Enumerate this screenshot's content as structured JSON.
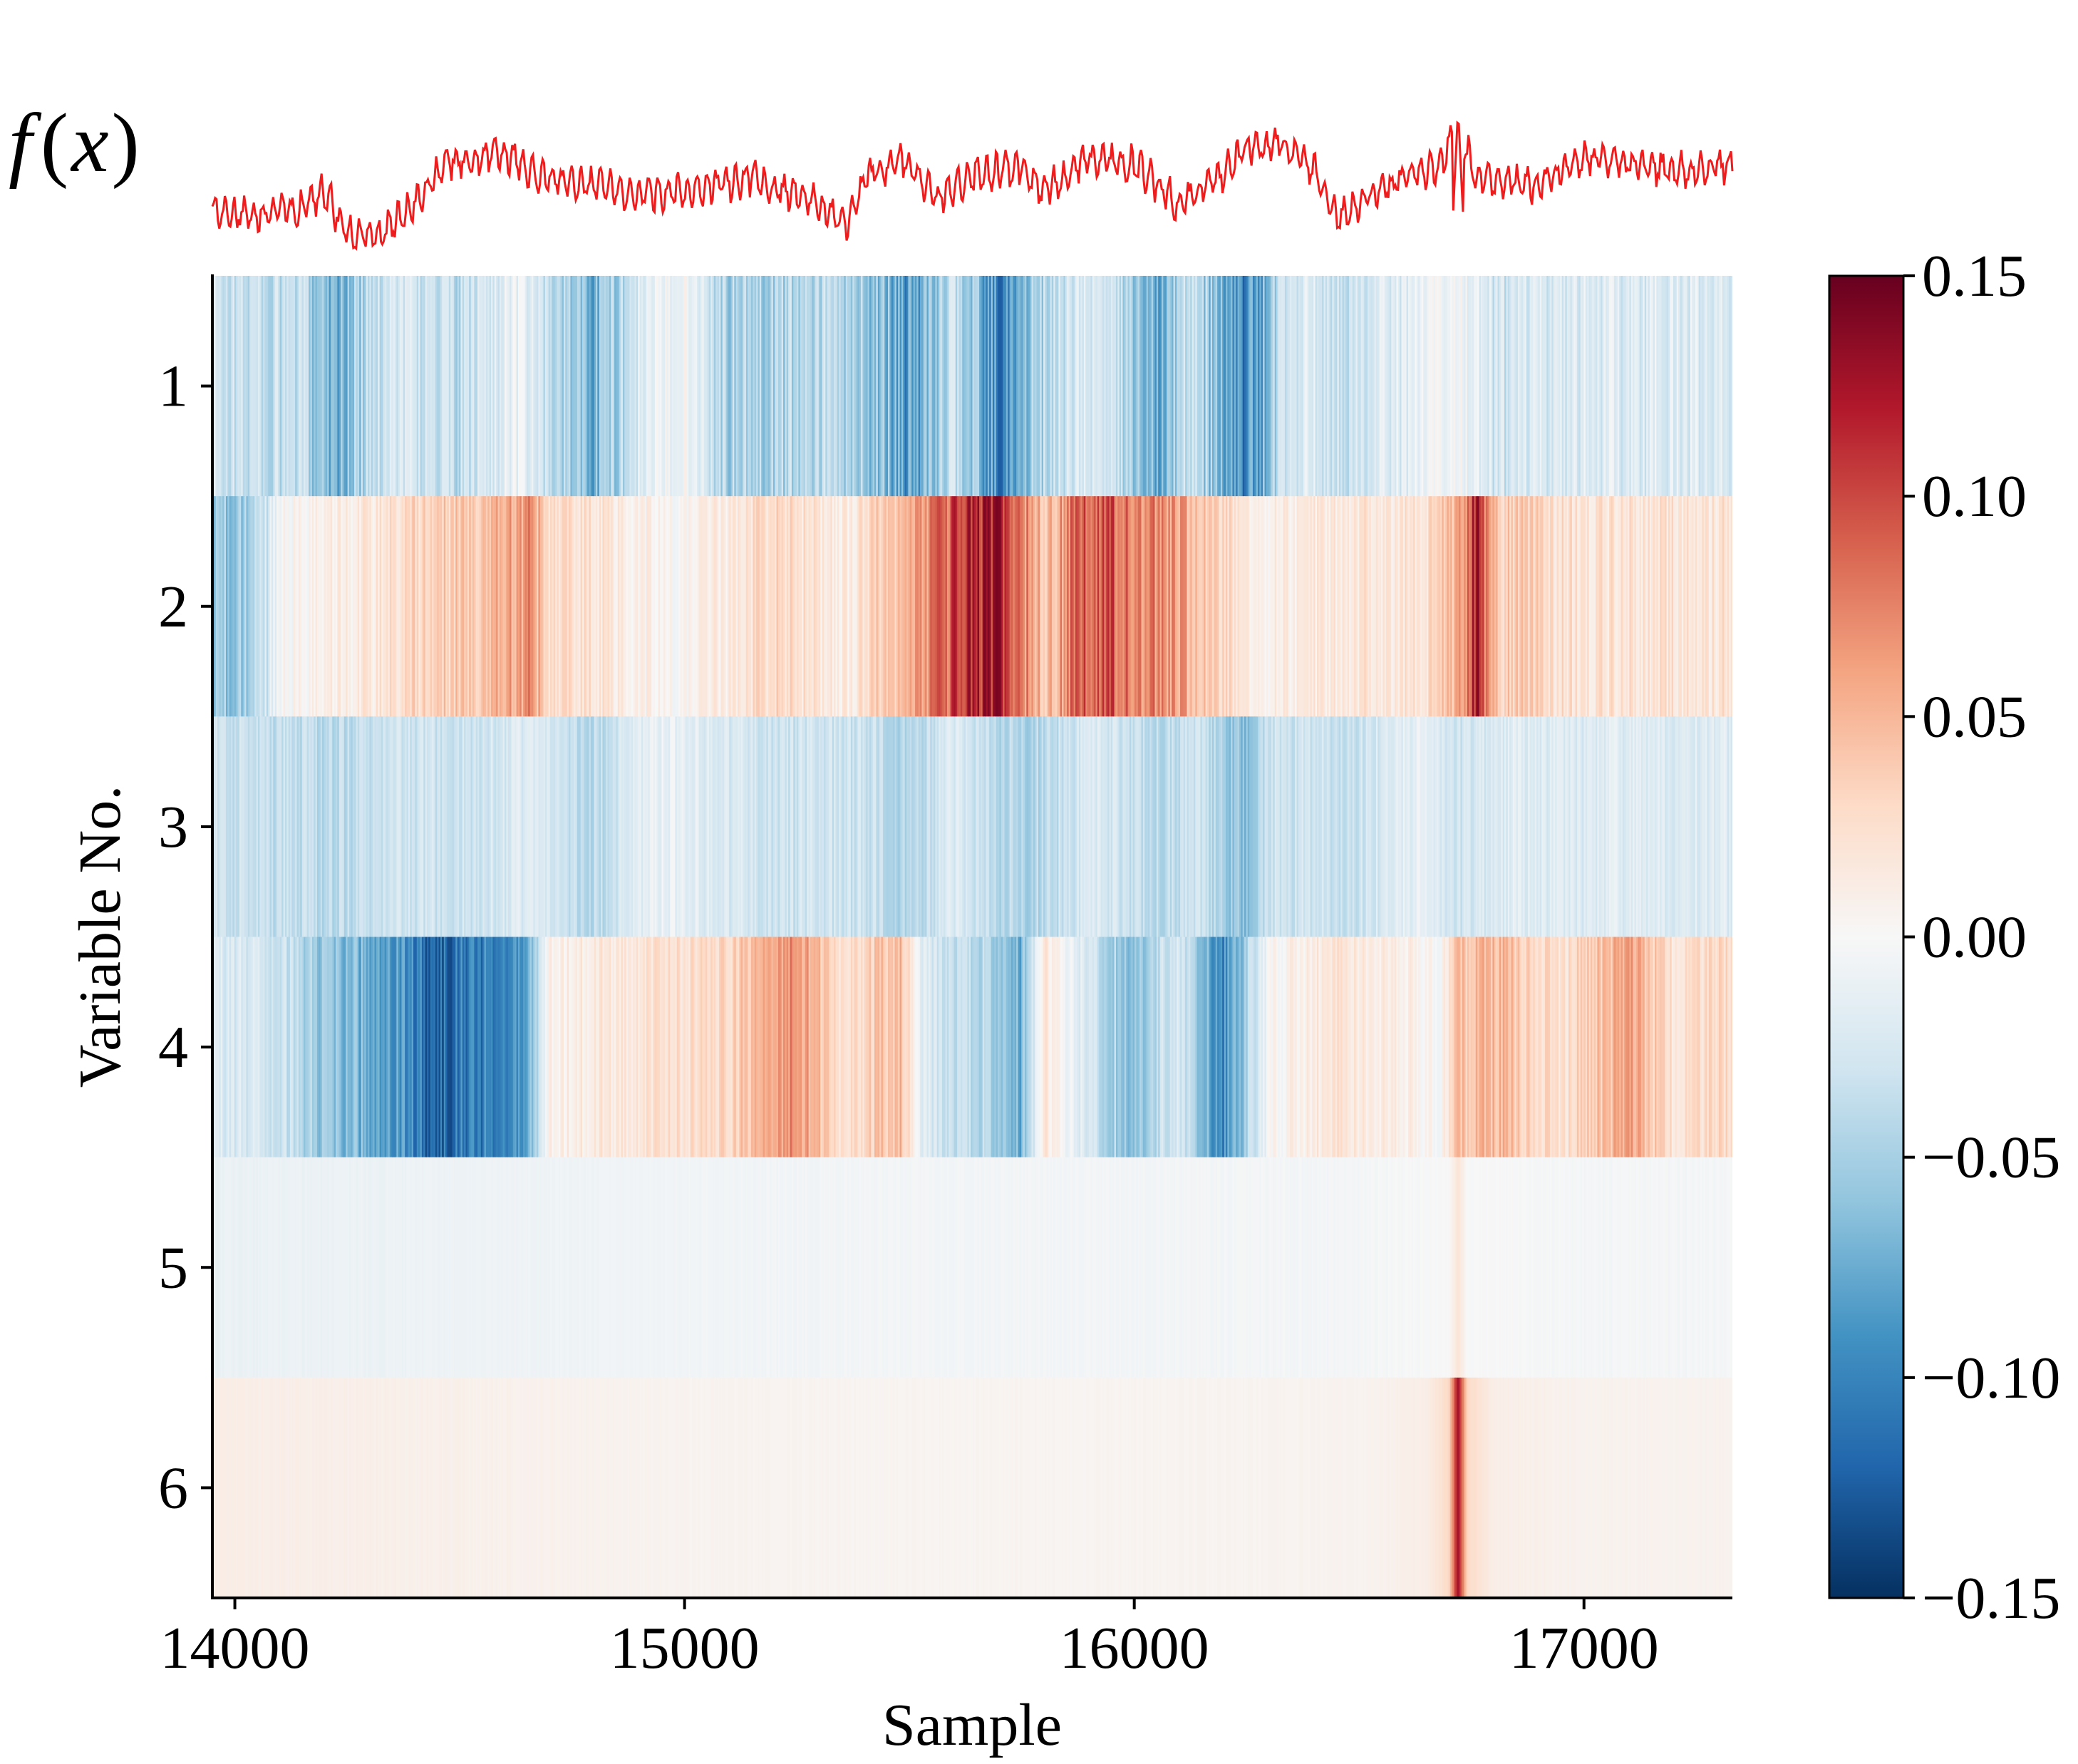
{
  "chart_data": {
    "type": "heatmap",
    "title": "",
    "top_panel": {
      "label": "f (x)",
      "label_parts": [
        "f",
        "(",
        "x",
        ")"
      ],
      "type": "line",
      "color": "#ee1c1c",
      "x_range": [
        13950,
        17330
      ],
      "anchors": [
        [
          13950,
          0.35
        ],
        [
          14050,
          0.32
        ],
        [
          14150,
          0.38
        ],
        [
          14200,
          0.5
        ],
        [
          14250,
          0.18
        ],
        [
          14320,
          0.15
        ],
        [
          14400,
          0.42
        ],
        [
          14470,
          0.72
        ],
        [
          14600,
          0.78
        ],
        [
          14680,
          0.6
        ],
        [
          14800,
          0.55
        ],
        [
          14900,
          0.48
        ],
        [
          15000,
          0.5
        ],
        [
          15150,
          0.6
        ],
        [
          15300,
          0.4
        ],
        [
          15360,
          0.25
        ],
        [
          15400,
          0.6
        ],
        [
          15480,
          0.75
        ],
        [
          15560,
          0.45
        ],
        [
          15650,
          0.62
        ],
        [
          15750,
          0.68
        ],
        [
          15800,
          0.5
        ],
        [
          15900,
          0.75
        ],
        [
          16000,
          0.7
        ],
        [
          16100,
          0.4
        ],
        [
          16170,
          0.55
        ],
        [
          16250,
          0.82
        ],
        [
          16330,
          0.85
        ],
        [
          16400,
          0.65
        ],
        [
          16450,
          0.3
        ],
        [
          16520,
          0.45
        ],
        [
          16600,
          0.6
        ],
        [
          16680,
          0.7
        ],
        [
          16720,
          1.0
        ],
        [
          16760,
          0.6
        ],
        [
          16900,
          0.55
        ],
        [
          17000,
          0.75
        ],
        [
          17100,
          0.72
        ],
        [
          17200,
          0.65
        ],
        [
          17330,
          0.7
        ]
      ],
      "spike": {
        "x": 16720,
        "value": 1.0
      }
    },
    "heatmap": {
      "x_label": "Sample",
      "y_label": "Variable No.",
      "x_range": [
        13950,
        17330
      ],
      "x_ticks": [
        14000,
        15000,
        16000,
        17000
      ],
      "x_tick_labels": [
        "14000",
        "15000",
        "16000",
        "17000"
      ],
      "y_categories": [
        "1",
        "2",
        "3",
        "4",
        "5",
        "6"
      ],
      "colormap": "RdBu_r",
      "rows": [
        {
          "variable": "1",
          "amplitude": 0.07,
          "profile": [
            [
              13950,
              -0.03
            ],
            [
              14150,
              -0.04
            ],
            [
              14230,
              -0.07
            ],
            [
              14350,
              -0.02
            ],
            [
              14500,
              -0.04
            ],
            [
              14620,
              -0.01
            ],
            [
              14800,
              -0.07
            ],
            [
              14900,
              -0.02
            ],
            [
              15000,
              0.0
            ],
            [
              15100,
              -0.05
            ],
            [
              15300,
              -0.04
            ],
            [
              15450,
              -0.06
            ],
            [
              15500,
              -0.09
            ],
            [
              15600,
              -0.03
            ],
            [
              15700,
              -0.1
            ],
            [
              15800,
              -0.04
            ],
            [
              15900,
              -0.02
            ],
            [
              16050,
              -0.07
            ],
            [
              16120,
              -0.03
            ],
            [
              16250,
              -0.1
            ],
            [
              16350,
              -0.02
            ],
            [
              16500,
              -0.03
            ],
            [
              16650,
              -0.01
            ],
            [
              16720,
              0.0
            ],
            [
              16800,
              -0.03
            ],
            [
              17000,
              -0.02
            ],
            [
              17330,
              -0.02
            ]
          ]
        },
        {
          "variable": "2",
          "amplitude": 0.06,
          "profile": [
            [
              13950,
              -0.06
            ],
            [
              14050,
              -0.05
            ],
            [
              14100,
              0.0
            ],
            [
              14250,
              0.01
            ],
            [
              14400,
              0.03
            ],
            [
              14600,
              0.05
            ],
            [
              14650,
              0.07
            ],
            [
              14700,
              0.03
            ],
            [
              14900,
              0.01
            ],
            [
              15000,
              0.0
            ],
            [
              15200,
              0.03
            ],
            [
              15350,
              0.01
            ],
            [
              15500,
              0.05
            ],
            [
              15600,
              0.1
            ],
            [
              15700,
              0.12
            ],
            [
              15800,
              0.04
            ],
            [
              15900,
              0.1
            ],
            [
              16000,
              0.08
            ],
            [
              16100,
              0.06
            ],
            [
              16200,
              0.03
            ],
            [
              16300,
              0.01
            ],
            [
              16500,
              0.02
            ],
            [
              16650,
              0.02
            ],
            [
              16720,
              0.05
            ],
            [
              16760,
              0.12
            ],
            [
              16800,
              0.04
            ],
            [
              17000,
              0.02
            ],
            [
              17330,
              0.02
            ]
          ]
        },
        {
          "variable": "3",
          "amplitude": 0.045,
          "profile": [
            [
              13950,
              -0.03
            ],
            [
              14200,
              -0.04
            ],
            [
              14350,
              -0.03
            ],
            [
              14500,
              -0.03
            ],
            [
              14650,
              -0.02
            ],
            [
              14800,
              -0.04
            ],
            [
              14950,
              -0.01
            ],
            [
              15050,
              -0.02
            ],
            [
              15200,
              -0.03
            ],
            [
              15400,
              -0.03
            ],
            [
              15500,
              -0.05
            ],
            [
              15600,
              -0.02
            ],
            [
              15750,
              -0.05
            ],
            [
              15900,
              -0.02
            ],
            [
              16050,
              -0.04
            ],
            [
              16150,
              -0.03
            ],
            [
              16250,
              -0.07
            ],
            [
              16300,
              -0.03
            ],
            [
              16500,
              -0.03
            ],
            [
              16650,
              -0.01
            ],
            [
              16720,
              -0.03
            ],
            [
              16800,
              -0.02
            ],
            [
              17000,
              -0.02
            ],
            [
              17330,
              -0.02
            ]
          ]
        },
        {
          "variable": "4",
          "amplitude": 0.05,
          "profile": [
            [
              13950,
              -0.02
            ],
            [
              14100,
              -0.03
            ],
            [
              14200,
              -0.06
            ],
            [
              14350,
              -0.08
            ],
            [
              14450,
              -0.12
            ],
            [
              14550,
              -0.1
            ],
            [
              14650,
              -0.08
            ],
            [
              14700,
              0.01
            ],
            [
              14900,
              0.02
            ],
            [
              15100,
              0.03
            ],
            [
              15250,
              0.07
            ],
            [
              15350,
              0.02
            ],
            [
              15480,
              0.05
            ],
            [
              15530,
              -0.02
            ],
            [
              15650,
              -0.04
            ],
            [
              15750,
              -0.07
            ],
            [
              15800,
              0.02
            ],
            [
              15900,
              -0.03
            ],
            [
              16000,
              -0.06
            ],
            [
              16100,
              -0.02
            ],
            [
              16200,
              -0.1
            ],
            [
              16300,
              0.0
            ],
            [
              16450,
              0.02
            ],
            [
              16600,
              0.01
            ],
            [
              16680,
              0.0
            ],
            [
              16720,
              0.04
            ],
            [
              16800,
              0.05
            ],
            [
              16950,
              0.02
            ],
            [
              17100,
              0.06
            ],
            [
              17200,
              0.02
            ],
            [
              17330,
              0.03
            ]
          ]
        },
        {
          "variable": "5",
          "amplitude": 0.008,
          "profile": [
            [
              13950,
              -0.01
            ],
            [
              14500,
              -0.008
            ],
            [
              15000,
              -0.005
            ],
            [
              15500,
              -0.004
            ],
            [
              16000,
              -0.004
            ],
            [
              16500,
              -0.003
            ],
            [
              16700,
              0.0
            ],
            [
              16720,
              0.02
            ],
            [
              16740,
              0.0
            ],
            [
              17000,
              -0.003
            ],
            [
              17330,
              -0.003
            ]
          ]
        },
        {
          "variable": "6",
          "amplitude": 0.006,
          "profile": [
            [
              13950,
              0.01
            ],
            [
              14500,
              0.008
            ],
            [
              15000,
              0.005
            ],
            [
              15500,
              0.004
            ],
            [
              16000,
              0.004
            ],
            [
              16500,
              0.005
            ],
            [
              16650,
              0.01
            ],
            [
              16700,
              0.03
            ],
            [
              16720,
              0.13
            ],
            [
              16740,
              0.03
            ],
            [
              16800,
              0.01
            ],
            [
              17000,
              0.006
            ],
            [
              17330,
              0.006
            ]
          ]
        }
      ]
    },
    "colorbar": {
      "range": [
        -0.15,
        0.15
      ],
      "ticks": [
        0.15,
        0.1,
        0.05,
        0.0,
        -0.05,
        -0.1,
        -0.15
      ],
      "tick_labels": [
        "0.15",
        "0.10",
        "0.05",
        "0.00",
        "−0.05",
        "−0.10",
        "−0.15"
      ],
      "stops": [
        "#053061",
        "#2166ac",
        "#4393c3",
        "#92c5de",
        "#d1e5f0",
        "#f7f7f7",
        "#fddbc7",
        "#f4a582",
        "#d6604d",
        "#b2182b",
        "#67001f"
      ]
    }
  }
}
